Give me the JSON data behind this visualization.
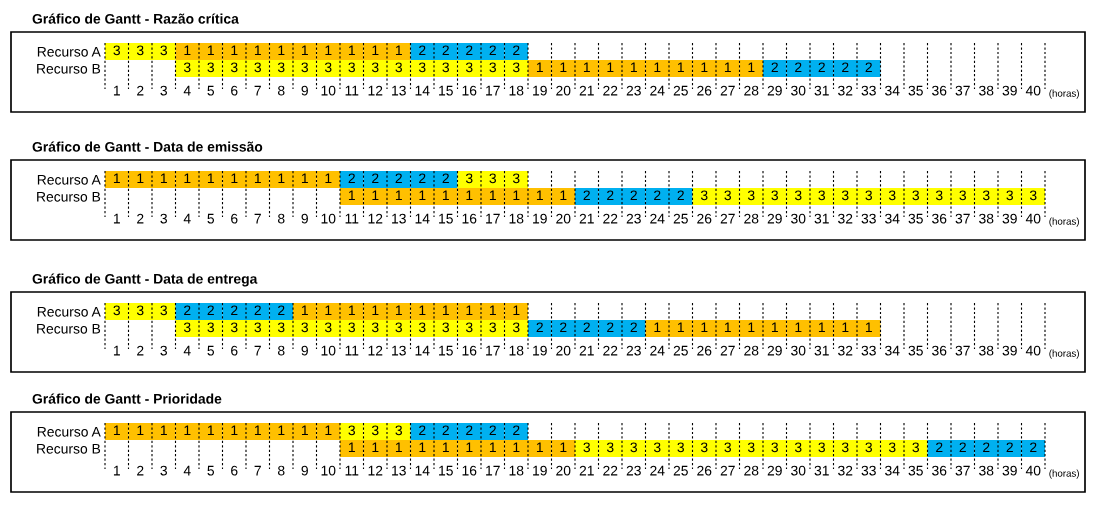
{
  "chart_data": [
    {
      "type": "heatmap",
      "title": "Gráfico de Gantt - Razão crítica",
      "xlabel": "(horas)",
      "categories": [
        "1",
        "2",
        "3",
        "4",
        "5",
        "6",
        "7",
        "8",
        "9",
        "10",
        "11",
        "12",
        "13",
        "14",
        "15",
        "16",
        "17",
        "18",
        "19",
        "20",
        "21",
        "22",
        "23",
        "24",
        "25",
        "26",
        "27",
        "28",
        "29",
        "30",
        "31",
        "32",
        "33",
        "34",
        "35",
        "36",
        "37",
        "38",
        "39",
        "40"
      ],
      "y_categories": [
        "Recurso A",
        "Recurso B"
      ],
      "colors": [
        "#ffc000",
        "#00b0f0",
        "#ffff00"
      ],
      "grid": "x",
      "data_labels": true,
      "cells": [
        [
          3,
          3,
          3,
          1,
          1,
          1,
          1,
          1,
          1,
          1,
          1,
          1,
          1,
          2,
          2,
          2,
          2,
          2,
          null,
          null,
          null,
          null,
          null,
          null,
          null,
          null,
          null,
          null,
          null,
          null,
          null,
          null,
          null,
          null,
          null,
          null,
          null,
          null,
          null,
          null
        ],
        [
          null,
          null,
          null,
          3,
          3,
          3,
          3,
          3,
          3,
          3,
          3,
          3,
          3,
          3,
          3,
          3,
          3,
          3,
          1,
          1,
          1,
          1,
          1,
          1,
          1,
          1,
          1,
          1,
          2,
          2,
          2,
          2,
          2,
          null,
          null,
          null,
          null,
          null,
          null,
          null
        ]
      ]
    },
    {
      "type": "heatmap",
      "title": "Gráfico de Gantt - Data de emissão",
      "xlabel": "(horas)",
      "categories": [
        "1",
        "2",
        "3",
        "4",
        "5",
        "6",
        "7",
        "8",
        "9",
        "10",
        "11",
        "12",
        "13",
        "14",
        "15",
        "16",
        "17",
        "18",
        "19",
        "20",
        "21",
        "22",
        "23",
        "24",
        "25",
        "26",
        "27",
        "28",
        "29",
        "30",
        "31",
        "32",
        "33",
        "34",
        "35",
        "36",
        "37",
        "38",
        "39",
        "40"
      ],
      "y_categories": [
        "Recurso A",
        "Recurso B"
      ],
      "colors": [
        "#ffc000",
        "#00b0f0",
        "#ffff00"
      ],
      "grid": "x",
      "data_labels": true,
      "cells": [
        [
          1,
          1,
          1,
          1,
          1,
          1,
          1,
          1,
          1,
          1,
          2,
          2,
          2,
          2,
          2,
          3,
          3,
          3,
          null,
          null,
          null,
          null,
          null,
          null,
          null,
          null,
          null,
          null,
          null,
          null,
          null,
          null,
          null,
          null,
          null,
          null,
          null,
          null,
          null,
          null
        ],
        [
          null,
          null,
          null,
          null,
          null,
          null,
          null,
          null,
          null,
          null,
          1,
          1,
          1,
          1,
          1,
          1,
          1,
          1,
          1,
          1,
          2,
          2,
          2,
          2,
          2,
          3,
          3,
          3,
          3,
          3,
          3,
          3,
          3,
          3,
          3,
          3,
          3,
          3,
          3,
          3
        ]
      ]
    },
    {
      "type": "heatmap",
      "title": "Gráfico de Gantt - Data de entrega",
      "xlabel": "(horas)",
      "categories": [
        "1",
        "2",
        "3",
        "4",
        "5",
        "6",
        "7",
        "8",
        "9",
        "10",
        "11",
        "12",
        "13",
        "14",
        "15",
        "16",
        "17",
        "18",
        "19",
        "20",
        "21",
        "22",
        "23",
        "24",
        "25",
        "26",
        "27",
        "28",
        "29",
        "30",
        "31",
        "32",
        "33",
        "34",
        "35",
        "36",
        "37",
        "38",
        "39",
        "40"
      ],
      "y_categories": [
        "Recurso A",
        "Recurso B"
      ],
      "colors": [
        "#ffc000",
        "#00b0f0",
        "#ffff00"
      ],
      "grid": "x",
      "data_labels": true,
      "cells": [
        [
          3,
          3,
          3,
          2,
          2,
          2,
          2,
          2,
          1,
          1,
          1,
          1,
          1,
          1,
          1,
          1,
          1,
          1,
          null,
          null,
          null,
          null,
          null,
          null,
          null,
          null,
          null,
          null,
          null,
          null,
          null,
          null,
          null,
          null,
          null,
          null,
          null,
          null,
          null,
          null
        ],
        [
          null,
          null,
          null,
          3,
          3,
          3,
          3,
          3,
          3,
          3,
          3,
          3,
          3,
          3,
          3,
          3,
          3,
          3,
          2,
          2,
          2,
          2,
          2,
          1,
          1,
          1,
          1,
          1,
          1,
          1,
          1,
          1,
          1,
          null,
          null,
          null,
          null,
          null,
          null,
          null
        ]
      ]
    },
    {
      "type": "heatmap",
      "title": "Gráfico de Gantt - Prioridade",
      "xlabel": "(horas)",
      "categories": [
        "1",
        "2",
        "3",
        "4",
        "5",
        "6",
        "7",
        "8",
        "9",
        "10",
        "11",
        "12",
        "13",
        "14",
        "15",
        "16",
        "17",
        "18",
        "19",
        "20",
        "21",
        "22",
        "23",
        "24",
        "25",
        "26",
        "27",
        "28",
        "29",
        "30",
        "31",
        "32",
        "33",
        "34",
        "35",
        "36",
        "37",
        "38",
        "39",
        "40"
      ],
      "y_categories": [
        "Recurso A",
        "Recurso B"
      ],
      "colors": [
        "#ffc000",
        "#00b0f0",
        "#ffff00"
      ],
      "grid": "x",
      "data_labels": true,
      "cells": [
        [
          1,
          1,
          1,
          1,
          1,
          1,
          1,
          1,
          1,
          1,
          3,
          3,
          3,
          2,
          2,
          2,
          2,
          2,
          null,
          null,
          null,
          null,
          null,
          null,
          null,
          null,
          null,
          null,
          null,
          null,
          null,
          null,
          null,
          null,
          null,
          null,
          null,
          null,
          null,
          null
        ],
        [
          null,
          null,
          null,
          null,
          null,
          null,
          null,
          null,
          null,
          null,
          1,
          1,
          1,
          1,
          1,
          1,
          1,
          1,
          1,
          1,
          3,
          3,
          3,
          3,
          3,
          3,
          3,
          3,
          3,
          3,
          3,
          3,
          3,
          3,
          3,
          2,
          2,
          2,
          2,
          2
        ]
      ]
    }
  ]
}
